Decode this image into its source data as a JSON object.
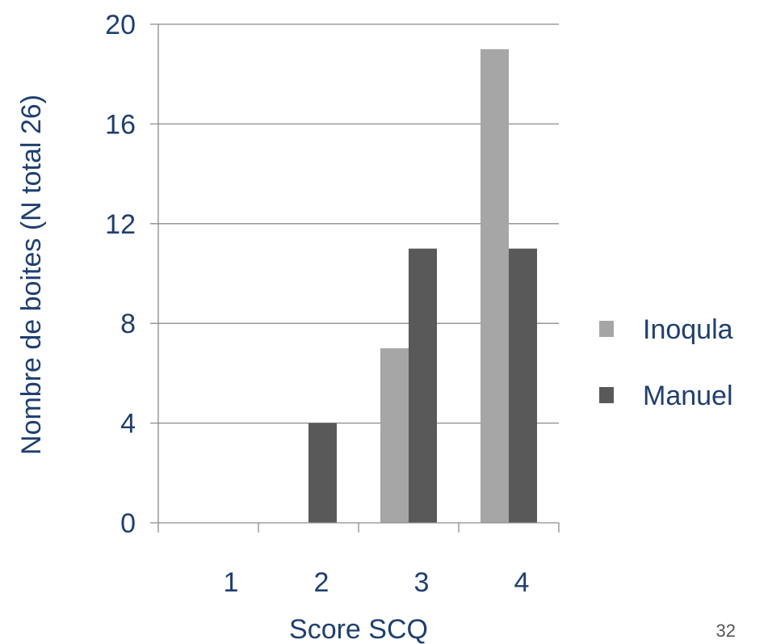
{
  "chart_data": {
    "type": "bar",
    "categories": [
      "1",
      "2",
      "3",
      "4"
    ],
    "series": [
      {
        "name": "Inoqula",
        "values": [
          0,
          0,
          7,
          19
        ],
        "color": "#a6a6a6"
      },
      {
        "name": "Manuel",
        "values": [
          0,
          4,
          11,
          11
        ],
        "color": "#595959"
      }
    ],
    "xlabel": "Score SCQ",
    "ylabel": "Nombre de boites  (N total 26)",
    "ylim": [
      0,
      20
    ],
    "yticks": [
      "0",
      "4",
      "8",
      "12",
      "16",
      "20"
    ],
    "grid": true,
    "legend_position": "right"
  },
  "page_number": "32"
}
